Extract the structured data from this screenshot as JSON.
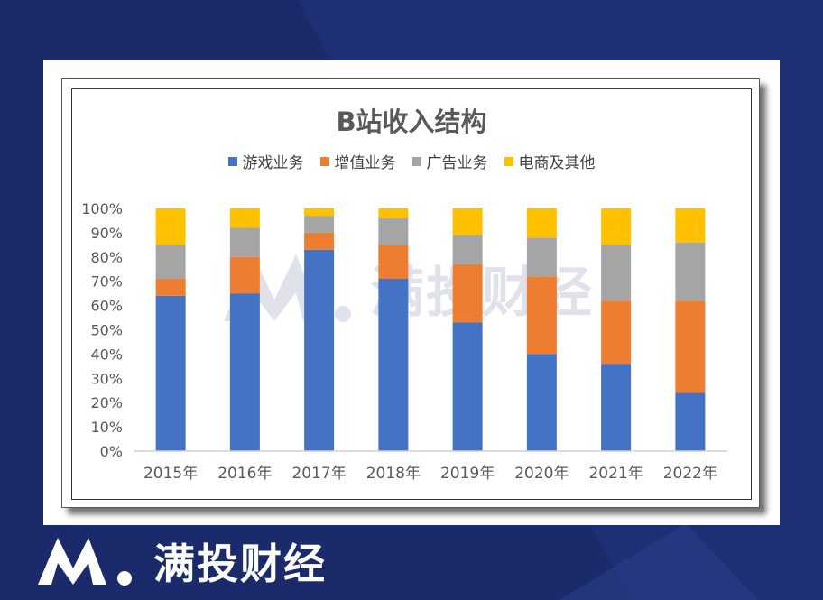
{
  "brand": {
    "name": "满投财经"
  },
  "watermark": {
    "text": "满投财经"
  },
  "colors": {
    "background": "#1b2a6b",
    "game": "#4472C4",
    "vas": "#ED7D31",
    "ads": "#A5A5A5",
    "ecommerce": "#FFC000"
  },
  "chart_data": {
    "type": "bar",
    "stacked": true,
    "title": "B站收入结构",
    "categories": [
      "2015年",
      "2016年",
      "2017年",
      "2018年",
      "2019年",
      "2020年",
      "2021年",
      "2022年"
    ],
    "series": [
      {
        "name": "游戏业务",
        "color": "#4472C4",
        "values": [
          64,
          65,
          83,
          71,
          53,
          40,
          36,
          24
        ]
      },
      {
        "name": "增值业务",
        "color": "#ED7D31",
        "values": [
          7,
          15,
          7,
          14,
          24,
          32,
          26,
          38
        ]
      },
      {
        "name": "广告业务",
        "color": "#A5A5A5",
        "values": [
          14,
          12,
          7,
          11,
          12,
          16,
          23,
          24
        ]
      },
      {
        "name": "电商及其他",
        "color": "#FFC000",
        "values": [
          15,
          8,
          3,
          4,
          11,
          12,
          15,
          14
        ]
      }
    ],
    "y_ticks": [
      "0%",
      "10%",
      "20%",
      "30%",
      "40%",
      "50%",
      "60%",
      "70%",
      "80%",
      "90%",
      "100%"
    ],
    "ylim": [
      0,
      100
    ],
    "legend_position": "top"
  }
}
